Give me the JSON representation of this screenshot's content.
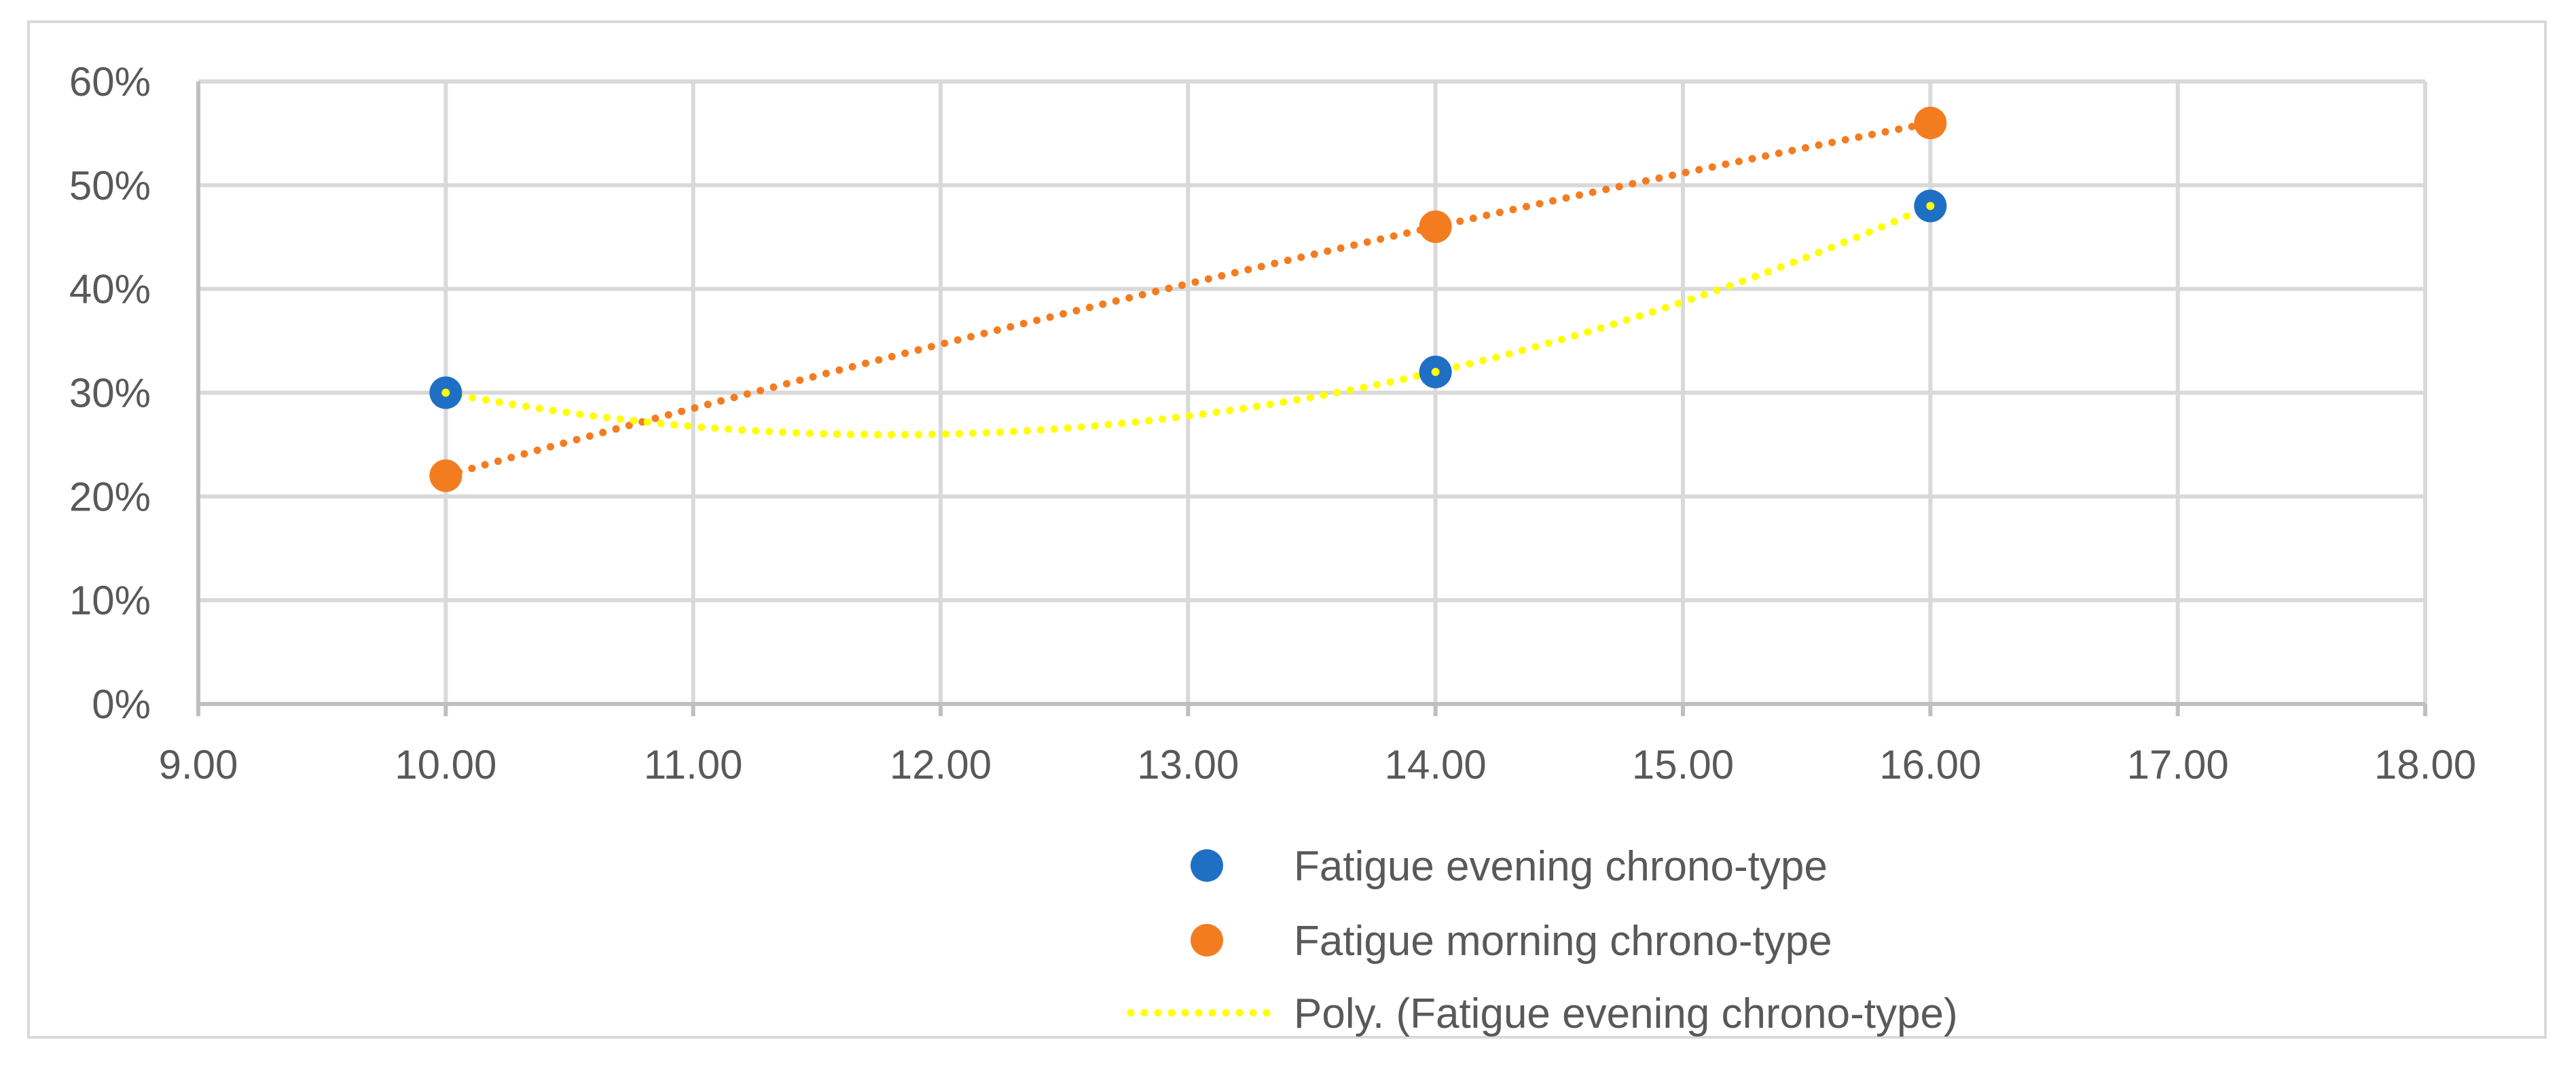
{
  "chart_data": {
    "type": "scatter",
    "title": "",
    "xlabel": "",
    "ylabel": "",
    "xlim": [
      9,
      18
    ],
    "ylim": [
      0,
      0.6
    ],
    "x_ticks": [
      9,
      10,
      11,
      12,
      13,
      14,
      15,
      16,
      17,
      18
    ],
    "x_tick_labels": [
      "9.00",
      "10.00",
      "11.00",
      "12.00",
      "13.00",
      "14.00",
      "15.00",
      "16.00",
      "17.00",
      "18.00"
    ],
    "y_ticks": [
      0,
      0.1,
      0.2,
      0.3,
      0.4,
      0.5,
      0.6
    ],
    "y_tick_labels": [
      "0%",
      "10%",
      "20%",
      "30%",
      "40%",
      "50%",
      "60%"
    ],
    "grid": true,
    "legend_position": "bottom",
    "series": [
      {
        "name": "Fatigue evening chrono-type",
        "color": "#1f6fc5",
        "x": [
          10,
          14,
          16
        ],
        "y": [
          0.3,
          0.32,
          0.48
        ],
        "marker": "circle"
      },
      {
        "name": "Fatigue morning chrono-type",
        "color": "#f47c20",
        "x": [
          10,
          14,
          16
        ],
        "y": [
          0.22,
          0.46,
          0.56
        ],
        "marker": "circle",
        "trendline": "polynomial-dotted"
      }
    ],
    "trendlines": [
      {
        "name": "Poly. (Fatigue evening chrono-type)",
        "color": "#ffff00",
        "style": "dotted",
        "order": 2,
        "of_series": "Fatigue evening chrono-type"
      }
    ]
  }
}
